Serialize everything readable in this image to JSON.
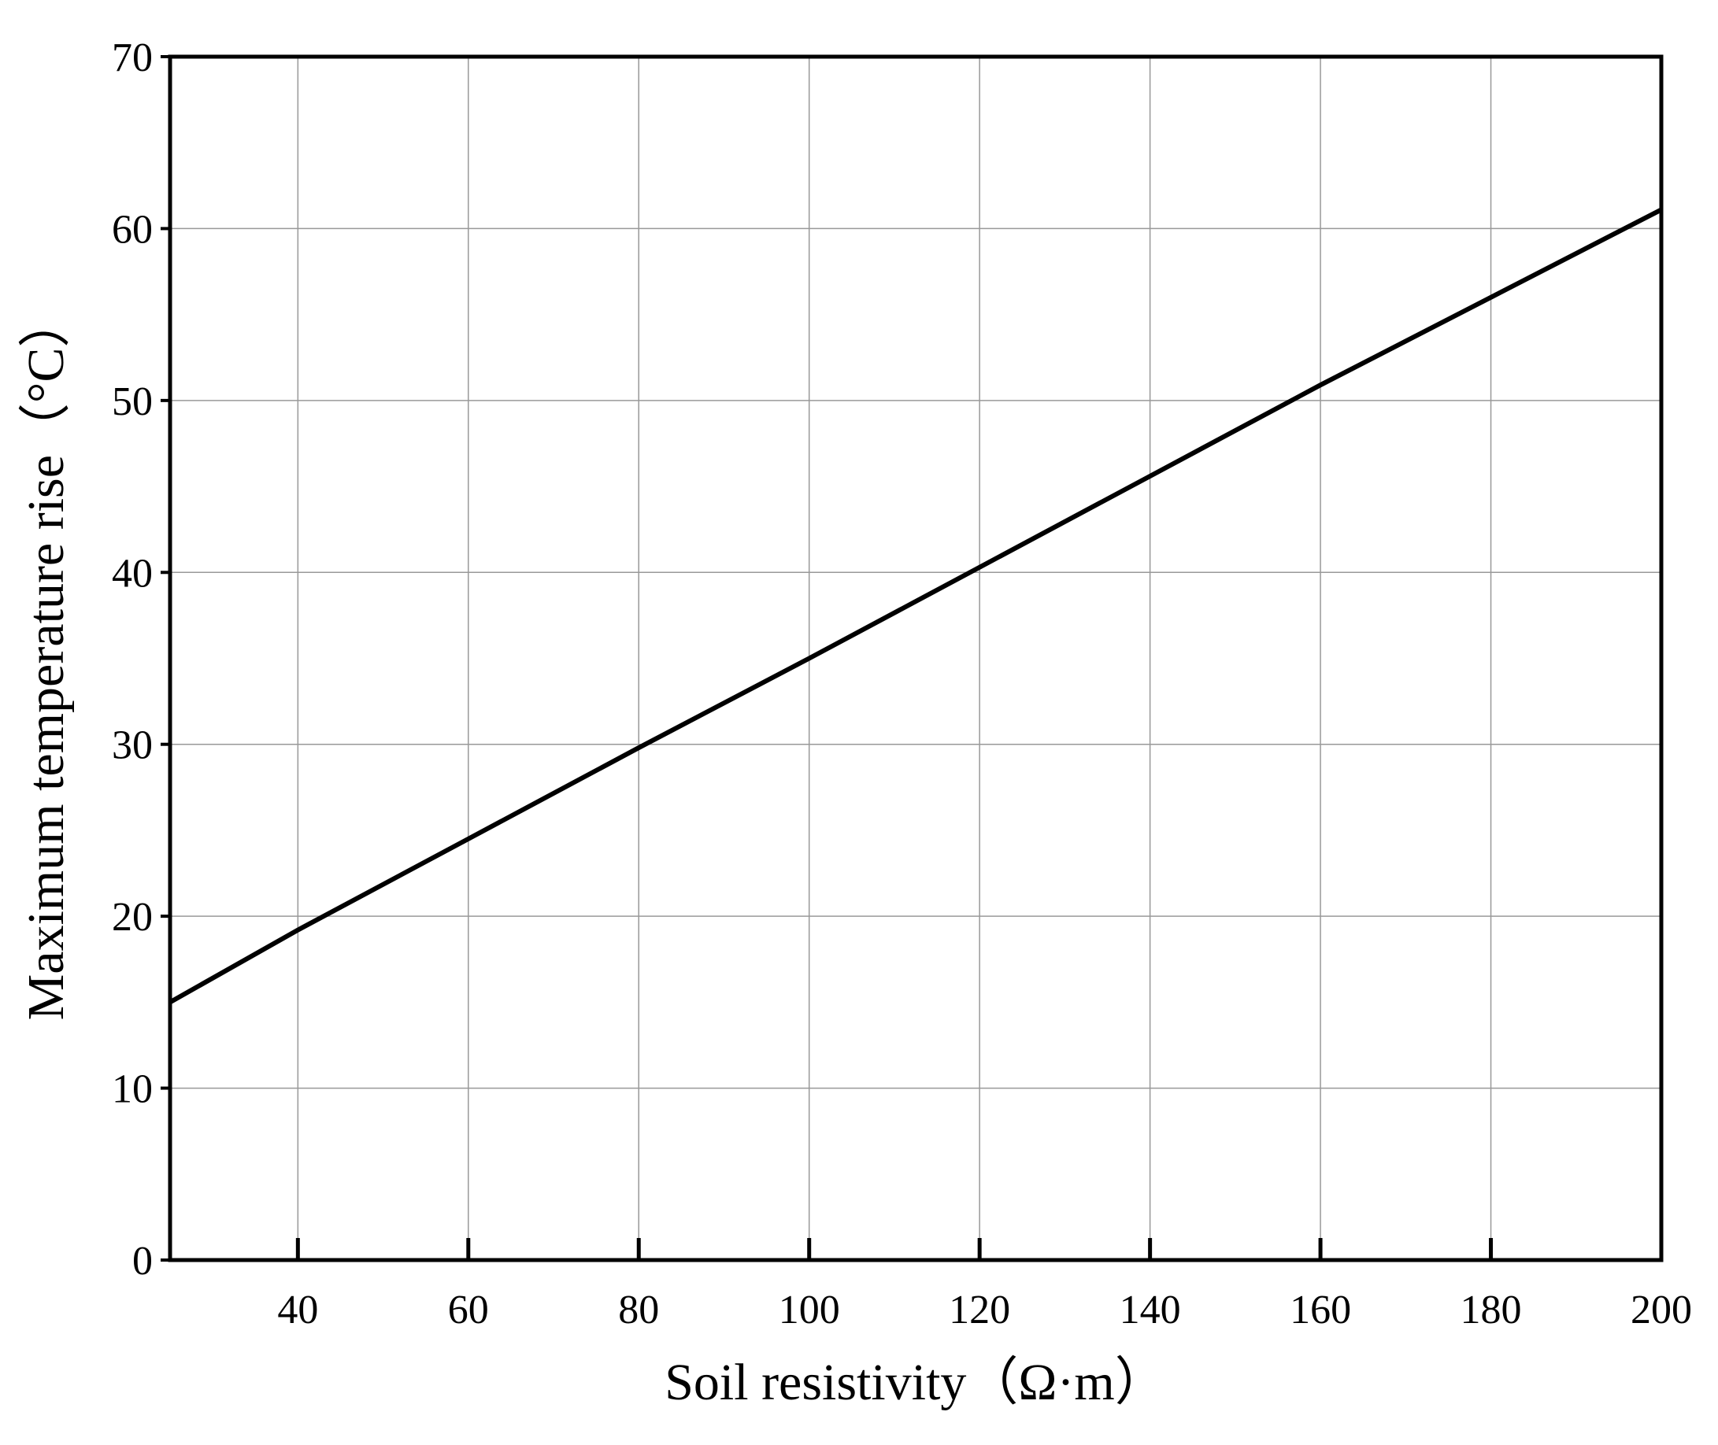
{
  "chart_data": {
    "type": "line",
    "x_label": "Soil resistivity（Ω·m）",
    "y_label": "Maximum temperature rise（°C）",
    "x": [
      25,
      40,
      60,
      80,
      100,
      120,
      140,
      160,
      180,
      200
    ],
    "series": [
      {
        "color": "#000000",
        "values": [
          15,
          19.2,
          24.5,
          29.8,
          35,
          40.3,
          45.6,
          50.9,
          56,
          61.1
        ]
      }
    ],
    "xlim": [
      25,
      200
    ],
    "xticks": [
      40,
      60,
      80,
      100,
      120,
      140,
      160,
      180,
      200
    ],
    "ylim": [
      0,
      70
    ],
    "yticks": [
      0,
      10,
      20,
      30,
      40,
      50,
      60,
      70
    ],
    "grid": true
  }
}
